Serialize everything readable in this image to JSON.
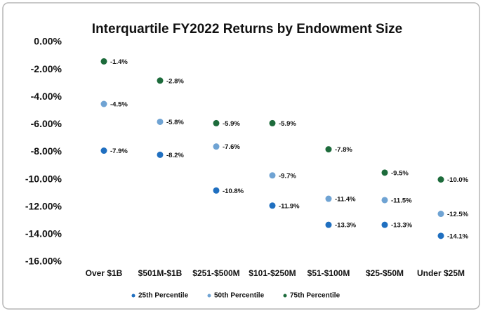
{
  "chart_data": {
    "type": "dot",
    "title": "Interquartile FY2022 Returns by Endowment Size",
    "categories": [
      "Over $1B",
      "$501M-$1B",
      "$251-$500M",
      "$101-$250M",
      "$51-$100M",
      "$25-$50M",
      "Under $25M"
    ],
    "series": [
      {
        "name": "25th Percentile",
        "color": "#1f6fc0",
        "values": [
          -7.9,
          -8.2,
          -10.8,
          -11.9,
          -13.3,
          -13.3,
          -14.1
        ],
        "value_labels": [
          "-7.9%",
          "-8.2%",
          "-10.8%",
          "-11.9%",
          "-13.3%",
          "-13.3%",
          "-14.1%"
        ]
      },
      {
        "name": "50th Percentile",
        "color": "#6fa3d3",
        "values": [
          -4.5,
          -5.8,
          -7.6,
          -9.7,
          -11.4,
          -11.5,
          -12.5
        ],
        "value_labels": [
          "-4.5%",
          "-5.8%",
          "-7.6%",
          "-9.7%",
          "-11.4%",
          "-11.5%",
          "-12.5%"
        ]
      },
      {
        "name": "75th Percentile",
        "color": "#1d6b3b",
        "values": [
          -1.4,
          -2.8,
          -5.9,
          -5.9,
          -7.8,
          -9.5,
          -10.0
        ],
        "value_labels": [
          "-1.4%",
          "-2.8%",
          "-5.9%",
          "-5.9%",
          "-7.8%",
          "-9.5%",
          "-10.0%"
        ]
      }
    ],
    "ylim": [
      -16,
      0
    ],
    "yticks": [
      {
        "value": 0,
        "label": "0.00%"
      },
      {
        "value": -2,
        "label": "-2.00%"
      },
      {
        "value": -4,
        "label": "-4.00%"
      },
      {
        "value": -6,
        "label": "-6.00%"
      },
      {
        "value": -8,
        "label": "-8.00%"
      },
      {
        "value": -10,
        "label": "-10.00%"
      },
      {
        "value": -12,
        "label": "-12.00%"
      },
      {
        "value": -14,
        "label": "-14.00%"
      },
      {
        "value": -16,
        "label": "-16.00%"
      }
    ],
    "legend": "bottom"
  }
}
